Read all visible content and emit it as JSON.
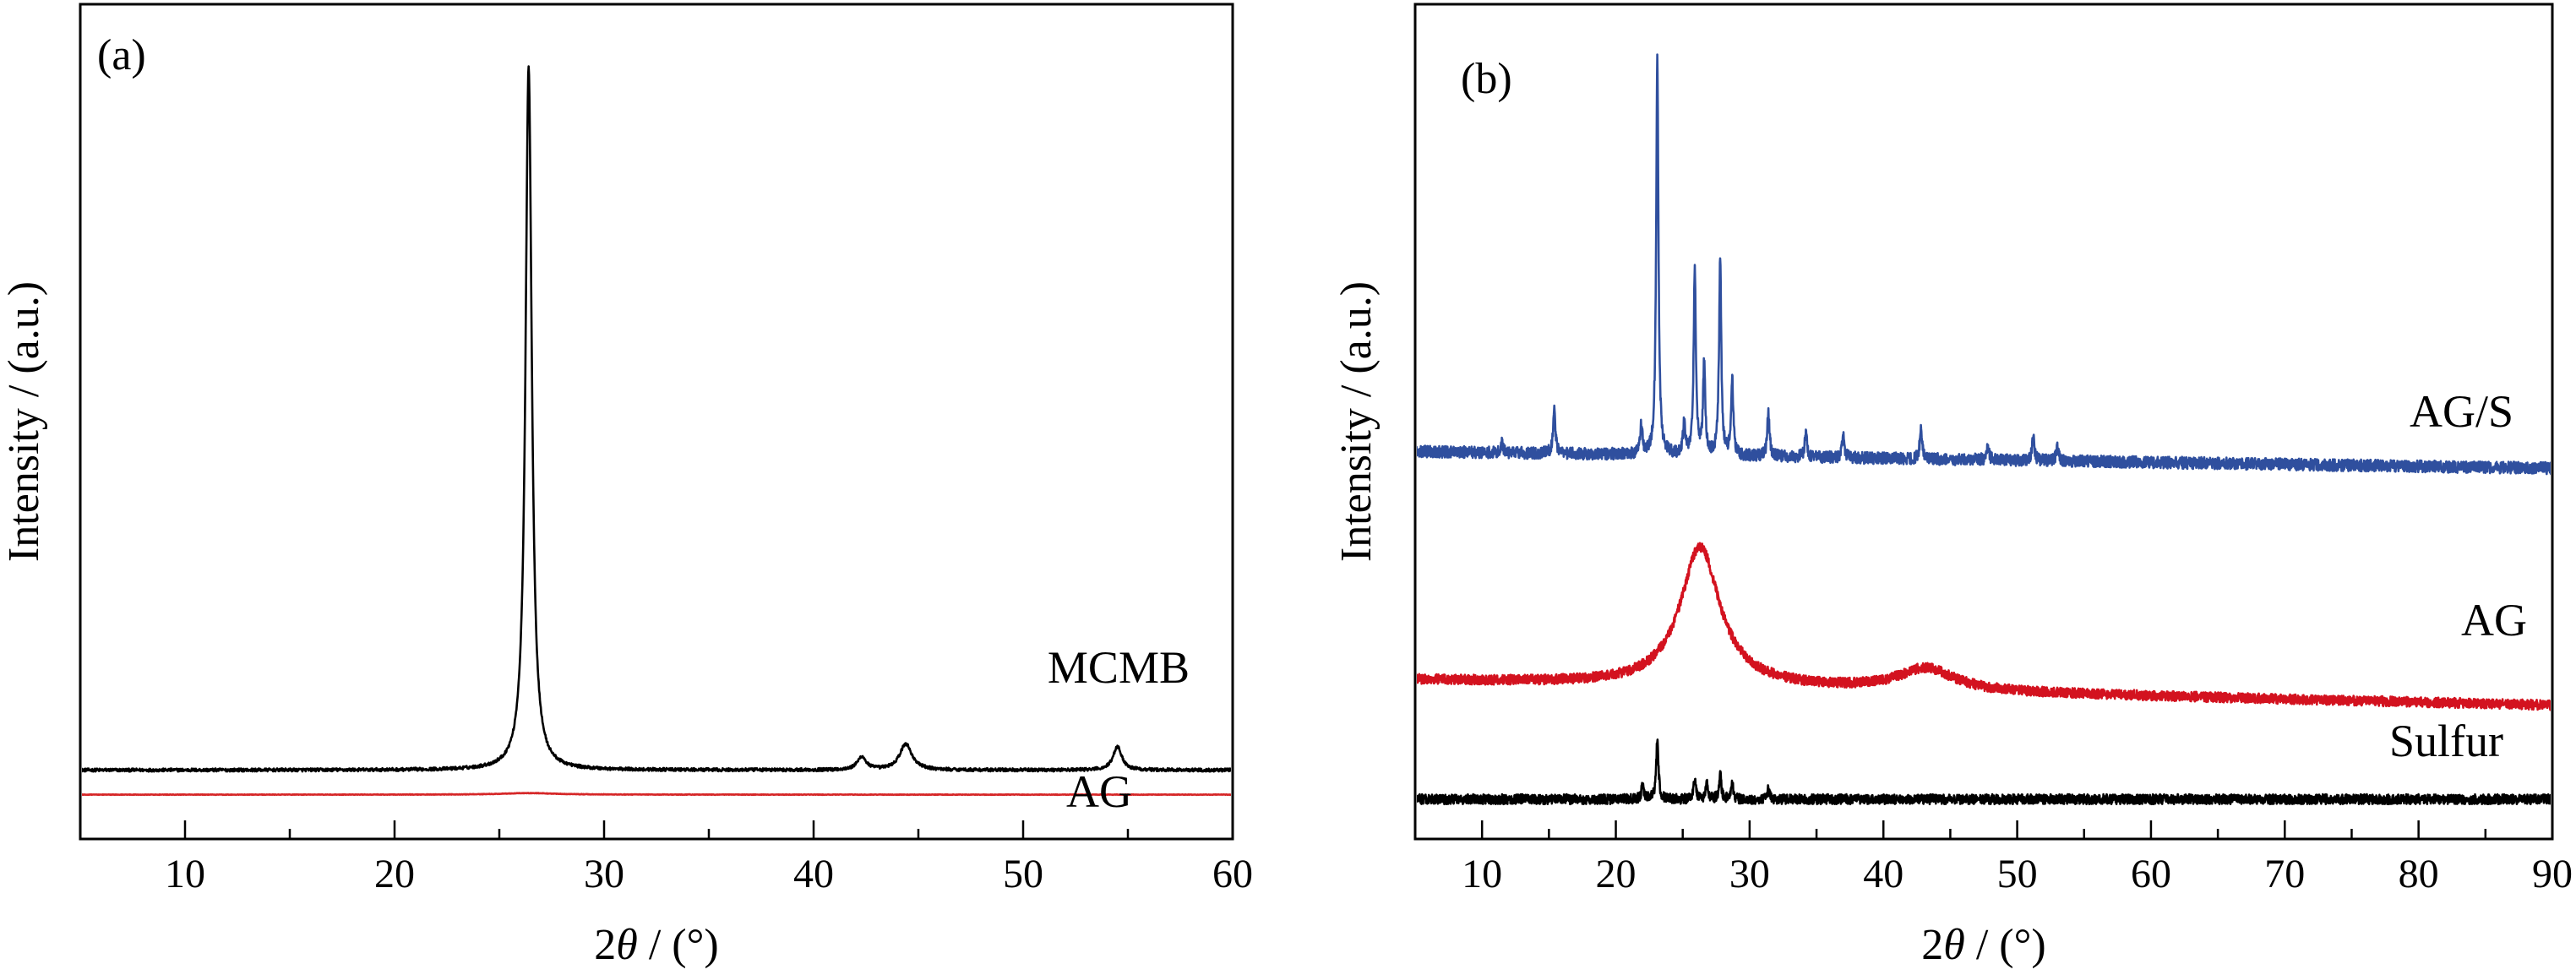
{
  "chart_data": [
    {
      "panel_label": "(a)",
      "type": "line",
      "xlabel": "2θ / (°)",
      "ylabel": "Intensity / (a.u.)",
      "xlim": [
        5,
        60
      ],
      "xticks": [
        10,
        20,
        30,
        40,
        50,
        60
      ],
      "y_tick_labels": false,
      "grid": false,
      "series": [
        {
          "name": "MCMB",
          "color": "#000000",
          "baseline": 0.12,
          "peaks": [
            {
              "x": 26.4,
              "height": 13.5,
              "width": 0.18
            },
            {
              "x": 42.3,
              "height": 0.25,
              "width": 0.25
            },
            {
              "x": 44.4,
              "height": 0.5,
              "width": 0.35
            },
            {
              "x": 54.5,
              "height": 0.45,
              "width": 0.25
            }
          ],
          "noise": 0.03
        },
        {
          "name": "AG",
          "color": "#d62728",
          "baseline": -0.35,
          "peaks": [
            {
              "x": 26.4,
              "height": 0.03,
              "width": 1.5
            }
          ],
          "noise": 0.005
        }
      ]
    },
    {
      "panel_label": "(b)",
      "type": "line",
      "xlabel": "2θ / (°)",
      "ylabel": "Intensity / (a.u.)",
      "xlim": [
        5,
        90
      ],
      "xticks": [
        10,
        20,
        30,
        40,
        50,
        60,
        70,
        80,
        90
      ],
      "y_tick_labels": false,
      "grid": false,
      "series": [
        {
          "name": "AG/S",
          "color": "#2f4f9e",
          "baseline": 7.0,
          "slope": -0.004,
          "peaks": [
            {
              "x": 11.5,
              "height": 0.2,
              "width": 0.1
            },
            {
              "x": 15.4,
              "height": 0.9,
              "width": 0.1
            },
            {
              "x": 21.9,
              "height": 0.6,
              "width": 0.1
            },
            {
              "x": 23.1,
              "height": 8.0,
              "width": 0.1
            },
            {
              "x": 25.1,
              "height": 0.6,
              "width": 0.1
            },
            {
              "x": 25.9,
              "height": 3.7,
              "width": 0.1
            },
            {
              "x": 26.6,
              "height": 1.8,
              "width": 0.1
            },
            {
              "x": 27.8,
              "height": 3.9,
              "width": 0.1
            },
            {
              "x": 28.7,
              "height": 1.5,
              "width": 0.1
            },
            {
              "x": 31.4,
              "height": 0.9,
              "width": 0.1
            },
            {
              "x": 34.2,
              "height": 0.5,
              "width": 0.1
            },
            {
              "x": 37.0,
              "height": 0.5,
              "width": 0.1
            },
            {
              "x": 42.8,
              "height": 0.6,
              "width": 0.1
            },
            {
              "x": 47.8,
              "height": 0.3,
              "width": 0.1
            },
            {
              "x": 51.2,
              "height": 0.5,
              "width": 0.1
            },
            {
              "x": 53.0,
              "height": 0.3,
              "width": 0.1
            }
          ],
          "noise": 0.12
        },
        {
          "name": "AG",
          "color": "#d3121f",
          "baseline": 2.4,
          "slope": -0.006,
          "peaks": [
            {
              "x": 26.3,
              "height": 2.8,
              "width": 1.8
            },
            {
              "x": 43.2,
              "height": 0.45,
              "width": 2.5
            }
          ],
          "noise": 0.1
        },
        {
          "name": "Sulfur",
          "color": "#000000",
          "baseline": 0.0,
          "peaks": [
            {
              "x": 22.0,
              "height": 0.3,
              "width": 0.1
            },
            {
              "x": 23.1,
              "height": 1.2,
              "width": 0.1
            },
            {
              "x": 25.9,
              "height": 0.4,
              "width": 0.1
            },
            {
              "x": 26.8,
              "height": 0.3,
              "width": 0.1
            },
            {
              "x": 27.8,
              "height": 0.5,
              "width": 0.1
            },
            {
              "x": 28.7,
              "height": 0.3,
              "width": 0.1
            },
            {
              "x": 31.4,
              "height": 0.2,
              "width": 0.1
            }
          ],
          "noise": 0.1
        }
      ]
    }
  ]
}
